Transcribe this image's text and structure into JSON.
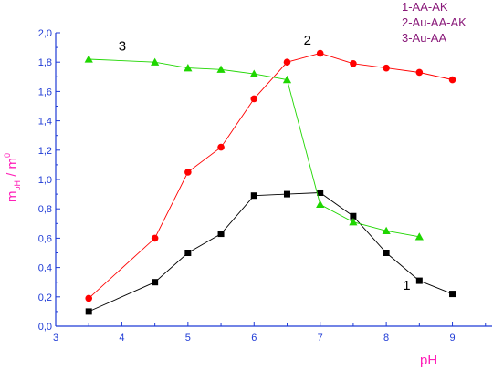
{
  "chart_data": {
    "type": "line",
    "xlabel": "pH",
    "ylabel_main": "m",
    "ylabel_main_sub": "pH",
    "ylabel_sep": " / m",
    "ylabel_denom_sub": "0",
    "xlim": [
      3,
      9.6
    ],
    "ylim": [
      0,
      2.0
    ],
    "x_ticks": [
      "3",
      "4",
      "5",
      "6",
      "7",
      "8",
      "9"
    ],
    "y_ticks": [
      "0,0",
      "0,2",
      "0,4",
      "0,6",
      "0,8",
      "1,0",
      "1,2",
      "1,4",
      "1,6",
      "1,8",
      "2,0"
    ],
    "legend": [
      "1-AA-AK",
      "2-Au-AA-AK",
      "3-Au-AA"
    ],
    "series": [
      {
        "label": "1",
        "color": "#000000",
        "marker": "square",
        "points": [
          [
            3.5,
            0.1
          ],
          [
            4.5,
            0.3
          ],
          [
            5.0,
            0.5
          ],
          [
            5.5,
            0.63
          ],
          [
            6.0,
            0.89
          ],
          [
            6.5,
            0.9
          ],
          [
            7.0,
            0.91
          ],
          [
            7.5,
            0.75
          ],
          [
            8.0,
            0.5
          ],
          [
            8.5,
            0.31
          ],
          [
            9.0,
            0.22
          ]
        ]
      },
      {
        "label": "2",
        "color": "#ff0000",
        "marker": "circle",
        "points": [
          [
            3.5,
            0.19
          ],
          [
            4.5,
            0.6
          ],
          [
            5.0,
            1.05
          ],
          [
            5.5,
            1.22
          ],
          [
            6.0,
            1.55
          ],
          [
            6.5,
            1.8
          ],
          [
            7.0,
            1.86
          ],
          [
            7.5,
            1.79
          ],
          [
            8.0,
            1.76
          ],
          [
            8.5,
            1.73
          ],
          [
            9.0,
            1.68
          ]
        ]
      },
      {
        "label": "3",
        "color": "#1fd600",
        "marker": "triangle",
        "points": [
          [
            3.5,
            1.82
          ],
          [
            4.5,
            1.8
          ],
          [
            5.0,
            1.76
          ],
          [
            5.5,
            1.75
          ],
          [
            6.0,
            1.72
          ],
          [
            6.5,
            1.68
          ],
          [
            7.0,
            0.83
          ],
          [
            7.5,
            0.71
          ],
          [
            8.0,
            0.65
          ],
          [
            8.5,
            0.61
          ]
        ]
      }
    ]
  }
}
